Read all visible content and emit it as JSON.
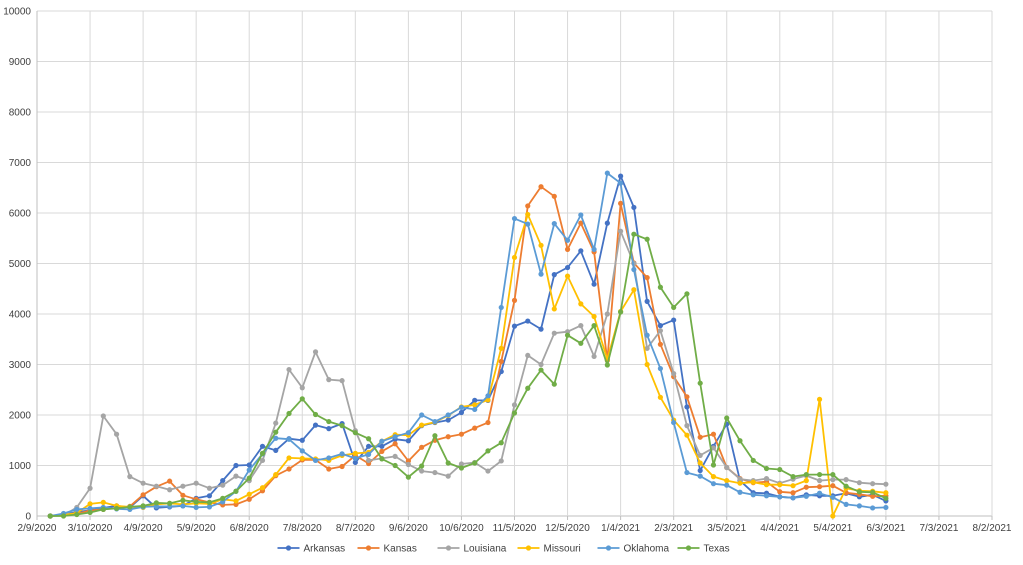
{
  "chart_data": {
    "type": "line",
    "title": "",
    "xlabel": "",
    "ylabel": "",
    "ylim": [
      0,
      10000
    ],
    "y_ticks": [
      0,
      1000,
      2000,
      3000,
      4000,
      5000,
      6000,
      7000,
      8000,
      9000,
      10000
    ],
    "x_tick_labels": [
      "2/9/2020",
      "3/10/2020",
      "4/9/2020",
      "5/9/2020",
      "6/8/2020",
      "7/8/2020",
      "8/7/2020",
      "9/6/2020",
      "10/6/2020",
      "11/5/2020",
      "12/5/2020",
      "1/4/2021",
      "2/3/2021",
      "3/5/2021",
      "4/4/2021",
      "5/4/2021",
      "6/3/2021",
      "7/3/2021",
      "8/2/2021"
    ],
    "grid": true,
    "legend_position": "bottom",
    "x_start": 1,
    "x_step": 1,
    "series": [
      {
        "name": "Arkansas",
        "color": "#4472c4",
        "values": [
          0,
          30,
          80,
          110,
          160,
          200,
          170,
          400,
          160,
          180,
          200,
          350,
          400,
          700,
          1000,
          1010,
          1380,
          1300,
          1530,
          1500,
          1800,
          1730,
          1830,
          1060,
          1380,
          1380,
          1520,
          1490,
          1790,
          1850,
          1900,
          2050,
          2290,
          2290,
          2860,
          3760,
          3860,
          3700,
          4780,
          4920,
          5250,
          4590,
          5800,
          6730,
          6110,
          4250,
          3770,
          3880,
          2160,
          900,
          1380,
          1820,
          700,
          460,
          450,
          380,
          360,
          420,
          400,
          400,
          450,
          380,
          420,
          300
        ]
      },
      {
        "name": "Kansas",
        "color": "#ed7d31",
        "values": [
          0,
          20,
          40,
          110,
          130,
          160,
          190,
          420,
          580,
          690,
          410,
          330,
          270,
          220,
          230,
          330,
          500,
          800,
          930,
          1110,
          1110,
          930,
          980,
          1200,
          1040,
          1280,
          1430,
          1090,
          1360,
          1500,
          1570,
          1620,
          1740,
          1850,
          3060,
          4270,
          6140,
          6520,
          6330,
          5280,
          5800,
          5230,
          3080,
          6190,
          5010,
          4720,
          3400,
          2760,
          2360,
          1560,
          1620,
          960,
          740,
          660,
          680,
          480,
          460,
          570,
          580,
          600,
          460,
          430,
          390,
          400
        ]
      },
      {
        "name": "Louisiana",
        "color": "#a5a5a5",
        "values": [
          0,
          10,
          170,
          550,
          1980,
          1620,
          780,
          650,
          590,
          520,
          590,
          650,
          550,
          610,
          790,
          700,
          1100,
          1840,
          2900,
          2540,
          3250,
          2700,
          2680,
          1690,
          1100,
          1140,
          1180,
          1020,
          890,
          860,
          790,
          1030,
          1060,
          890,
          1090,
          2200,
          3180,
          3000,
          3620,
          3650,
          3770,
          3160,
          4000,
          5640,
          5000,
          3320,
          3670,
          2820,
          1790,
          1200,
          1350,
          960,
          730,
          700,
          740,
          650,
          730,
          800,
          700,
          720,
          720,
          660,
          640,
          630
        ]
      },
      {
        "name": "Missouri",
        "color": "#ffc000",
        "values": [
          0,
          20,
          60,
          240,
          270,
          200,
          180,
          170,
          230,
          250,
          230,
          250,
          240,
          330,
          300,
          430,
          560,
          820,
          1150,
          1140,
          1130,
          1100,
          1200,
          1240,
          1260,
          1480,
          1610,
          1600,
          1800,
          1860,
          1990,
          2160,
          2200,
          2300,
          3320,
          5120,
          5970,
          5360,
          4100,
          4750,
          4200,
          3950,
          3100,
          4050,
          4480,
          3000,
          2350,
          1900,
          1600,
          1050,
          780,
          700,
          650,
          670,
          620,
          620,
          600,
          700,
          2310,
          0,
          550,
          500,
          490,
          460
        ]
      },
      {
        "name": "Oklahoma",
        "color": "#5b9bd5",
        "values": [
          0,
          50,
          130,
          150,
          170,
          140,
          130,
          180,
          190,
          190,
          200,
          170,
          180,
          280,
          490,
          910,
          1230,
          1540,
          1520,
          1290,
          1100,
          1150,
          1230,
          1140,
          1220,
          1480,
          1570,
          1650,
          2000,
          1870,
          2000,
          2150,
          2110,
          2380,
          4130,
          5890,
          5780,
          4790,
          5790,
          5460,
          5960,
          5280,
          6790,
          6590,
          4880,
          3580,
          2920,
          1850,
          860,
          790,
          640,
          610,
          470,
          420,
          400,
          380,
          360,
          390,
          450,
          370,
          230,
          200,
          160,
          170
        ]
      },
      {
        "name": "Texas",
        "color": "#70ad47",
        "values": [
          0,
          0,
          30,
          70,
          130,
          150,
          180,
          200,
          260,
          250,
          310,
          280,
          270,
          350,
          490,
          750,
          1240,
          1660,
          2030,
          2320,
          2010,
          1870,
          1790,
          1650,
          1530,
          1130,
          1000,
          770,
          990,
          1590,
          1050,
          950,
          1050,
          1290,
          1450,
          2040,
          2530,
          2890,
          2610,
          3580,
          3420,
          3770,
          2990,
          4040,
          5580,
          5480,
          4530,
          4130,
          4400,
          2630,
          1010,
          1940,
          1490,
          1100,
          940,
          920,
          780,
          820,
          820,
          820,
          590,
          480,
          470,
          350
        ]
      }
    ]
  }
}
